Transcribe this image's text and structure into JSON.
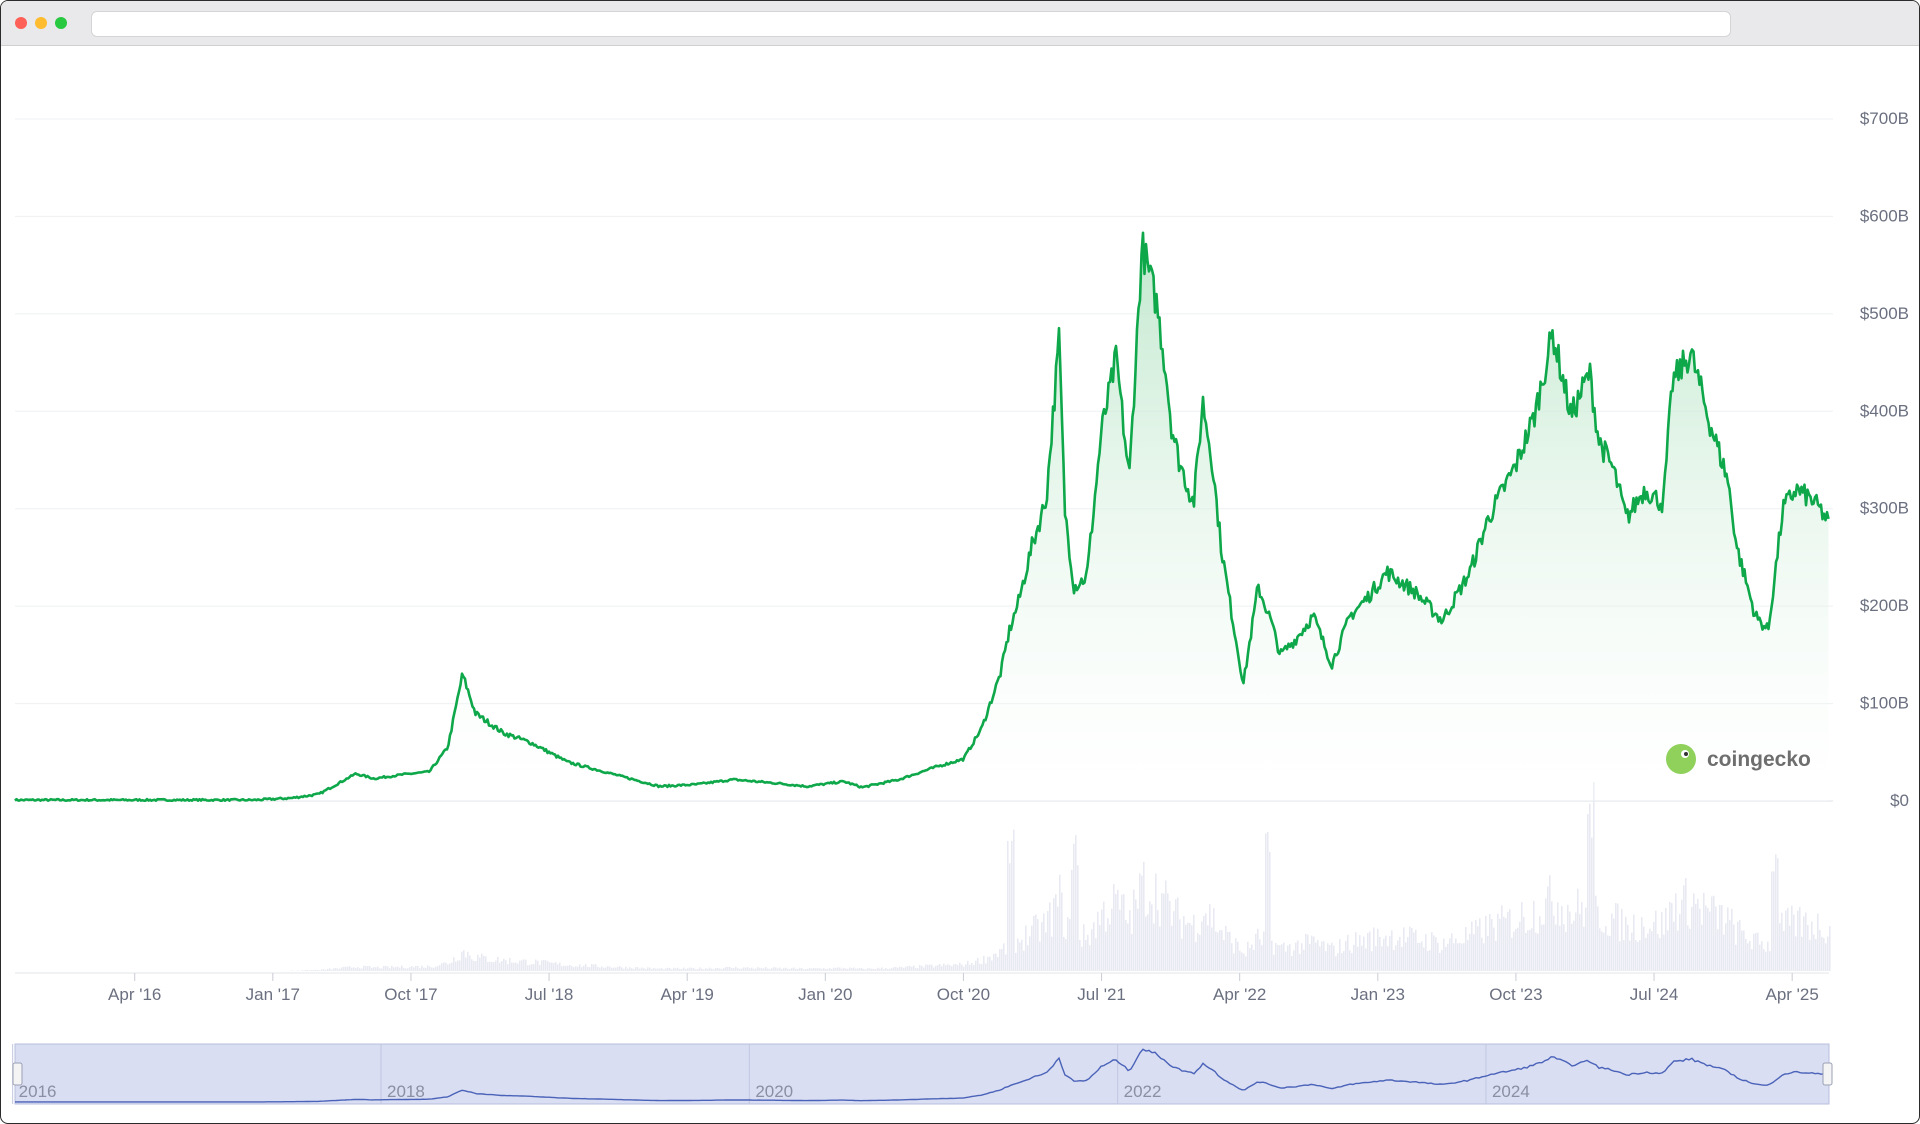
{
  "browser": {
    "url": ""
  },
  "colors": {
    "line": "#0ea84a",
    "area_top": "#b9e5c7",
    "volume": "#e8eaf2",
    "grid": "#eef0f3",
    "axis_text": "#6b7080",
    "navigator_fill": "#d9def3",
    "navigator_line": "#4a62b8"
  },
  "watermark": {
    "text": "coingecko",
    "icon": "gecko-logo-icon"
  },
  "chart_data": {
    "type": "area",
    "title": "",
    "xlabel": "",
    "ylabel": "",
    "y_axis": {
      "position": "right",
      "ylim": [
        0,
        700
      ],
      "unit": "B USD",
      "ticks": [
        0,
        100,
        200,
        300,
        400,
        500,
        600,
        700
      ],
      "tick_labels": [
        "$0",
        "$100B",
        "$200B",
        "$300B",
        "$400B",
        "$500B",
        "$600B",
        "$700B"
      ]
    },
    "x_axis": {
      "tick_labels": [
        "Apr '16",
        "Jan '17",
        "Oct '17",
        "Jul '18",
        "Apr '19",
        "Jan '20",
        "Oct '20",
        "Jul '21",
        "Apr '22",
        "Jan '23",
        "Oct '23",
        "Jul '24",
        "Apr '25"
      ],
      "ticks": [
        2016.25,
        2017.0,
        2017.75,
        2018.5,
        2019.25,
        2020.0,
        2020.75,
        2021.5,
        2022.25,
        2023.0,
        2023.75,
        2024.5,
        2025.25
      ]
    },
    "grid": true,
    "legend": "none",
    "series": [
      {
        "x": [
          2015.6,
          2016.0,
          2016.5,
          2016.9,
          2017.1,
          2017.25,
          2017.45,
          2017.55,
          2017.7,
          2017.85,
          2017.95,
          2018.03,
          2018.1,
          2018.25,
          2018.4,
          2018.6,
          2018.9,
          2019.1,
          2019.3,
          2019.5,
          2019.75,
          2019.9,
          2020.1,
          2020.2,
          2020.4,
          2020.6,
          2020.75,
          2020.85,
          2020.95,
          2021.0,
          2021.05,
          2021.12,
          2021.2,
          2021.27,
          2021.3,
          2021.35,
          2021.42,
          2021.5,
          2021.58,
          2021.65,
          2021.72,
          2021.8,
          2021.85,
          2021.88,
          2021.92,
          2022.0,
          2022.05,
          2022.1,
          2022.15,
          2022.2,
          2022.27,
          2022.35,
          2022.42,
          2022.47,
          2022.55,
          2022.65,
          2022.75,
          2022.85,
          2022.95,
          2023.05,
          2023.2,
          2023.35,
          2023.5,
          2023.6,
          2023.75,
          2023.85,
          2023.95,
          2024.05,
          2024.15,
          2024.2,
          2024.28,
          2024.35,
          2024.45,
          2024.55,
          2024.6,
          2024.7,
          2024.8,
          2024.9,
          2024.95,
          2025.05,
          2025.12,
          2025.2,
          2025.27,
          2025.35,
          2025.4,
          2025.45
        ],
        "values": [
          1,
          1,
          1,
          1,
          3,
          7,
          28,
          23,
          27,
          30,
          55,
          130,
          90,
          70,
          60,
          40,
          25,
          15,
          17,
          22,
          18,
          15,
          20,
          14,
          22,
          35,
          43,
          75,
          130,
          175,
          205,
          260,
          310,
          475,
          300,
          220,
          230,
          380,
          455,
          330,
          570,
          510,
          440,
          385,
          350,
          305,
          410,
          350,
          260,
          200,
          120,
          220,
          185,
          150,
          165,
          190,
          140,
          190,
          210,
          235,
          215,
          185,
          235,
          290,
          345,
          395,
          480,
          395,
          440,
          370,
          340,
          290,
          320,
          305,
          430,
          460,
          390,
          330,
          260,
          190,
          175,
          300,
          320,
          310,
          300,
          285
        ]
      }
    ],
    "volume": {
      "note": "trading volume bars shown beneath price line, unlabeled",
      "relative_peaks": [
        2021.0,
        2021.35,
        2022.4,
        2024.15,
        2025.15
      ]
    },
    "navigator": {
      "tick_labels": [
        "2016",
        "2018",
        "2020",
        "2022",
        "2024"
      ],
      "ticks": [
        2016.0,
        2018.0,
        2020.0,
        2022.0,
        2024.0
      ]
    }
  }
}
